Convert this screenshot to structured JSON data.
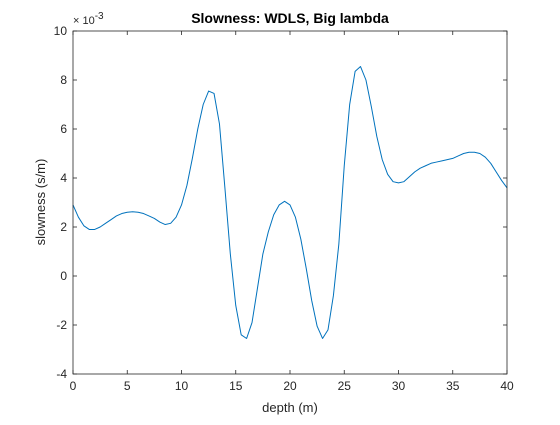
{
  "chart_data": {
    "type": "line",
    "title": "Slowness: WDLS, Big lambda",
    "xlabel": "depth (m)",
    "ylabel": "slowness (s/m)",
    "exponent_label": "× 10",
    "exponent_power": "-3",
    "xlim": [
      0,
      40
    ],
    "ylim": [
      -4,
      10
    ],
    "xticks": [
      0,
      5,
      10,
      15,
      20,
      25,
      30,
      35,
      40
    ],
    "yticks": [
      -4,
      -2,
      0,
      2,
      4,
      6,
      8,
      10
    ],
    "grid": false,
    "line_color": "#0072bd",
    "series": [
      {
        "x": [
          0,
          0.5,
          1,
          1.5,
          2,
          2.5,
          3,
          3.5,
          4,
          4.5,
          5,
          5.5,
          6,
          6.5,
          7,
          7.5,
          8,
          8.5,
          9,
          9.5,
          10,
          10.5,
          11,
          11.5,
          12,
          12.5,
          13,
          13.5,
          14,
          14.5,
          15,
          15.5,
          16,
          16.5,
          17,
          17.5,
          18,
          18.5,
          19,
          19.5,
          20,
          20.5,
          21,
          21.5,
          22,
          22.5,
          23,
          23.5,
          24,
          24.5,
          25,
          25.5,
          26,
          26.5,
          27,
          27.5,
          28,
          28.5,
          29,
          29.5,
          30,
          30.5,
          31,
          31.5,
          32,
          32.5,
          33,
          33.5,
          34,
          34.5,
          35,
          35.5,
          36,
          36.5,
          37,
          37.5,
          38,
          38.5,
          39,
          39.5,
          40
        ],
        "values": [
          2.9,
          2.4,
          2.05,
          1.9,
          1.9,
          2.0,
          2.15,
          2.3,
          2.45,
          2.55,
          2.6,
          2.62,
          2.6,
          2.55,
          2.45,
          2.35,
          2.2,
          2.1,
          2.15,
          2.4,
          2.9,
          3.7,
          4.8,
          6.0,
          7.0,
          7.55,
          7.45,
          6.2,
          3.6,
          0.9,
          -1.2,
          -2.4,
          -2.55,
          -1.9,
          -0.5,
          0.9,
          1.8,
          2.5,
          2.9,
          3.05,
          2.9,
          2.4,
          1.5,
          0.3,
          -1.0,
          -2.05,
          -2.55,
          -2.2,
          -0.8,
          1.3,
          4.5,
          7.0,
          8.35,
          8.55,
          8.0,
          6.9,
          5.7,
          4.75,
          4.15,
          3.85,
          3.8,
          3.85,
          4.05,
          4.25,
          4.4,
          4.5,
          4.6,
          4.65,
          4.7,
          4.75,
          4.8,
          4.9,
          5.0,
          5.05,
          5.05,
          5.0,
          4.85,
          4.6,
          4.25,
          3.9,
          3.6
        ]
      }
    ]
  }
}
